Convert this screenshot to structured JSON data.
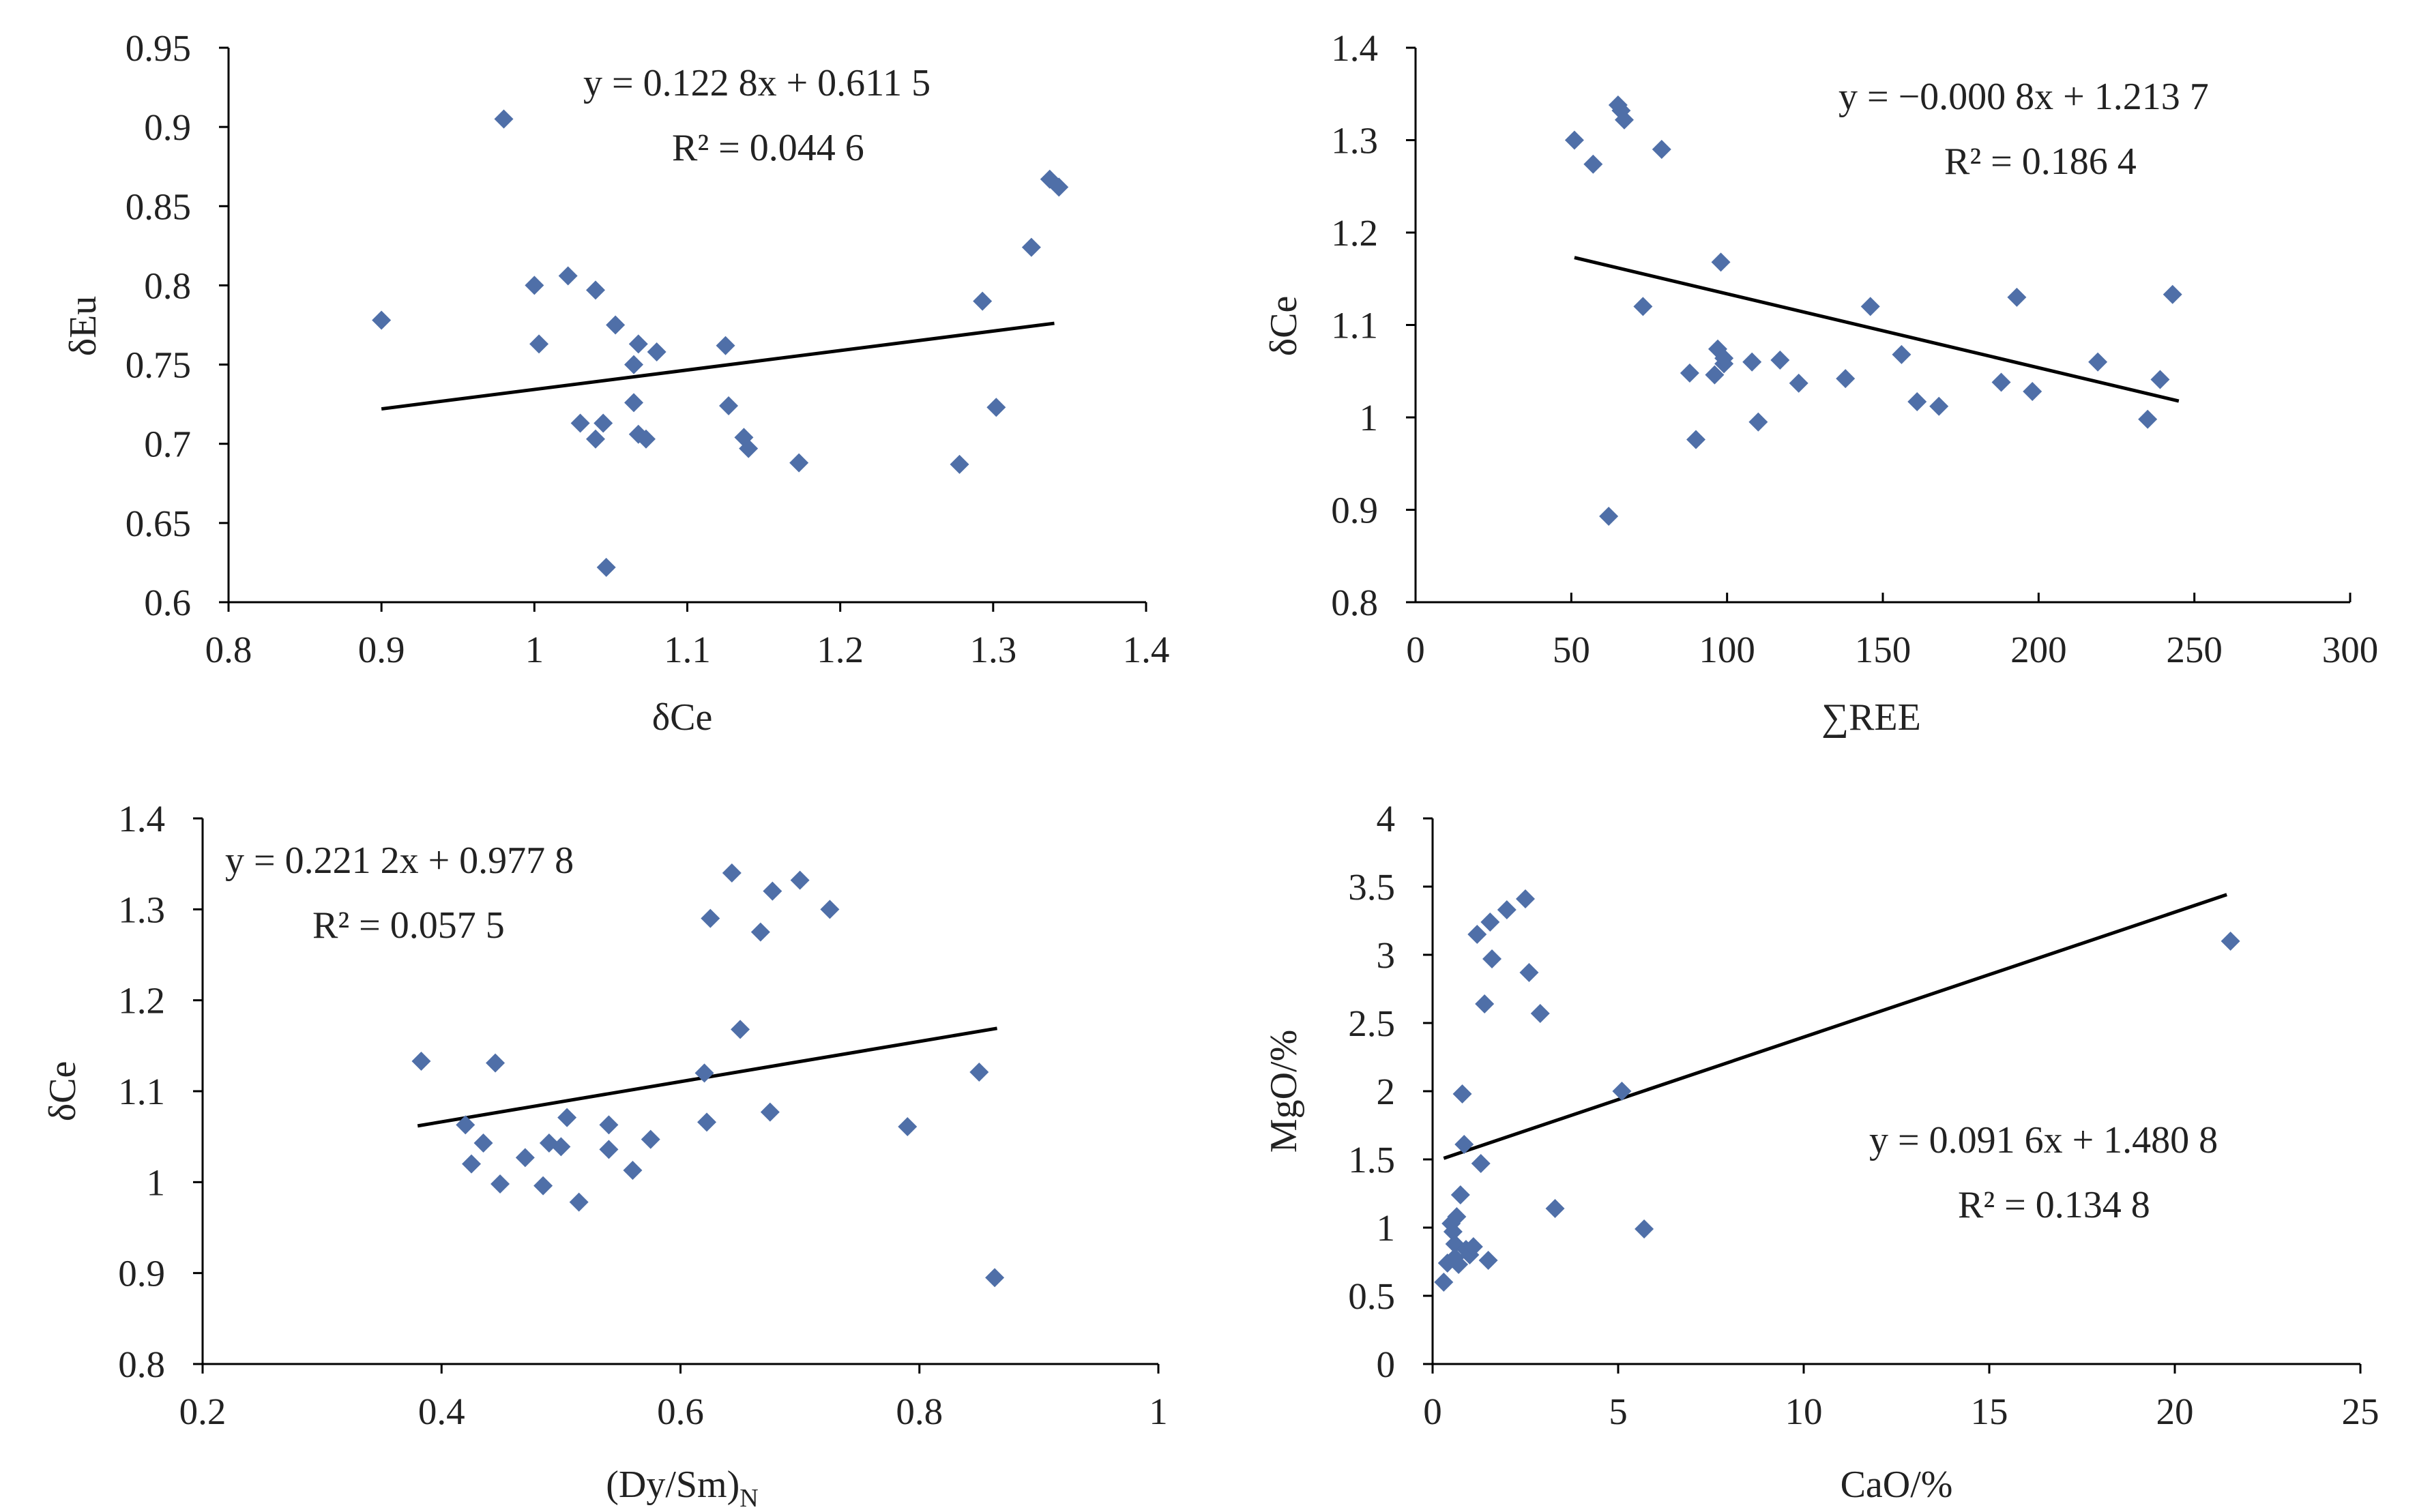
{
  "chart_data": [
    {
      "type": "scatter",
      "xlabel": "δCe",
      "ylabel": "δEu",
      "xlim": [
        0.8,
        1.4
      ],
      "ylim": [
        0.6,
        0.95
      ],
      "xticks": [
        "0.8",
        "0.9",
        "1",
        "1.1",
        "1.2",
        "1.3",
        "1.4"
      ],
      "yticks": [
        "0.6",
        "0.65",
        "0.7",
        "0.75",
        "0.8",
        "0.85",
        "0.9",
        "0.95"
      ],
      "equation": "y = 0.122 8x + 0.611 5",
      "r2": "R² = 0.044 6",
      "trendline": {
        "slope": 0.1228,
        "intercept": 0.6115,
        "x_from": 0.9,
        "x_to": 1.34
      },
      "x": [
        0.9,
        0.98,
        1.0,
        1.003,
        1.022,
        1.03,
        1.04,
        1.04,
        1.045,
        1.047,
        1.053,
        1.065,
        1.065,
        1.068,
        1.068,
        1.073,
        1.08,
        1.125,
        1.127,
        1.137,
        1.14,
        1.173,
        1.278,
        1.293,
        1.302,
        1.325,
        1.337,
        1.343
      ],
      "y": [
        0.778,
        0.905,
        0.8,
        0.763,
        0.806,
        0.713,
        0.797,
        0.703,
        0.713,
        0.622,
        0.775,
        0.75,
        0.726,
        0.763,
        0.706,
        0.703,
        0.758,
        0.762,
        0.724,
        0.704,
        0.697,
        0.688,
        0.687,
        0.79,
        0.723,
        0.824,
        0.867,
        0.862
      ]
    },
    {
      "type": "scatter",
      "xlabel": "∑REE",
      "ylabel": "δCe",
      "xlim": [
        0,
        300
      ],
      "ylim": [
        0.8,
        1.4
      ],
      "xticks": [
        "0",
        "50",
        "100",
        "150",
        "200",
        "250",
        "300"
      ],
      "yticks": [
        "0.8",
        "0.9",
        "1",
        "1.1",
        "1.2",
        "1.3",
        "1.4"
      ],
      "equation": "y = −0.000 8x + 1.213 7",
      "r2": "R² = 0.186 4",
      "trendline": {
        "slope": -0.0008,
        "intercept": 1.2137,
        "x_from": 51,
        "x_to": 245
      },
      "x": [
        51,
        57,
        62,
        65,
        66,
        67,
        73,
        79,
        88,
        90,
        96,
        97,
        98,
        99,
        99,
        108,
        110,
        117,
        123,
        138,
        146,
        156,
        161,
        168,
        188,
        193,
        198,
        219,
        235,
        239,
        243
      ],
      "y": [
        1.3,
        1.274,
        0.893,
        1.338,
        1.332,
        1.322,
        1.12,
        1.29,
        1.048,
        0.976,
        1.046,
        1.074,
        1.168,
        1.058,
        1.064,
        1.06,
        0.995,
        1.062,
        1.037,
        1.042,
        1.12,
        1.068,
        1.017,
        1.012,
        1.038,
        1.13,
        1.028,
        1.06,
        0.998,
        1.041,
        1.133
      ]
    },
    {
      "type": "scatter",
      "xlabel": "(Dy/Sm)",
      "xlabel_sub": "N",
      "ylabel": "δCe",
      "xlim": [
        0.2,
        1.0
      ],
      "ylim": [
        0.8,
        1.4
      ],
      "xticks": [
        "0.2",
        "0.4",
        "0.6",
        "0.8",
        "1"
      ],
      "yticks": [
        "0.8",
        "0.9",
        "1",
        "1.1",
        "1.2",
        "1.3",
        "1.4"
      ],
      "equation": "y = 0.221 2x + 0.977 8",
      "r2": "R² = 0.057 5",
      "trendline": {
        "slope": 0.2212,
        "intercept": 0.9778,
        "x_from": 0.38,
        "x_to": 0.865
      },
      "x": [
        0.383,
        0.42,
        0.425,
        0.435,
        0.445,
        0.449,
        0.47,
        0.485,
        0.49,
        0.5,
        0.505,
        0.515,
        0.54,
        0.54,
        0.56,
        0.575,
        0.62,
        0.622,
        0.625,
        0.643,
        0.65,
        0.667,
        0.677,
        0.675,
        0.7,
        0.725,
        0.79,
        0.85,
        0.863
      ],
      "y": [
        1.133,
        1.063,
        1.02,
        1.043,
        1.131,
        0.998,
        1.027,
        0.996,
        1.043,
        1.039,
        1.071,
        0.978,
        1.036,
        1.063,
        1.013,
        1.047,
        1.12,
        1.066,
        1.29,
        1.34,
        1.168,
        1.275,
        1.32,
        1.077,
        1.332,
        1.3,
        1.061,
        1.121,
        0.895
      ]
    },
    {
      "type": "scatter",
      "xlabel": "CaO/%",
      "ylabel": "MgO/%",
      "xlim": [
        0,
        25
      ],
      "ylim": [
        0,
        4
      ],
      "xticks": [
        "0",
        "5",
        "10",
        "15",
        "20",
        "25"
      ],
      "yticks": [
        "0",
        "0.5",
        "1",
        "1.5",
        "2",
        "2.5",
        "3",
        "3.5",
        "4"
      ],
      "equation": "y = 0.091 6x + 1.480 8",
      "r2": "R² = 0.134 8",
      "trendline": {
        "slope": 0.0916,
        "intercept": 1.4808,
        "x_from": 0.3,
        "x_to": 21.4
      },
      "x": [
        0.3,
        0.4,
        0.5,
        0.55,
        0.6,
        0.6,
        0.65,
        0.7,
        0.75,
        0.8,
        0.85,
        0.9,
        1.0,
        1.1,
        1.2,
        1.3,
        1.4,
        1.5,
        1.55,
        1.6,
        2.0,
        2.5,
        2.6,
        2.9,
        3.3,
        5.1,
        5.7,
        21.5
      ],
      "y": [
        0.6,
        0.74,
        1.03,
        0.97,
        0.88,
        0.78,
        1.08,
        0.73,
        1.24,
        1.98,
        1.61,
        0.84,
        0.8,
        0.86,
        3.15,
        1.47,
        2.64,
        0.76,
        3.24,
        2.97,
        3.33,
        3.41,
        2.87,
        2.57,
        1.14,
        2.0,
        0.99,
        3.1
      ]
    }
  ]
}
